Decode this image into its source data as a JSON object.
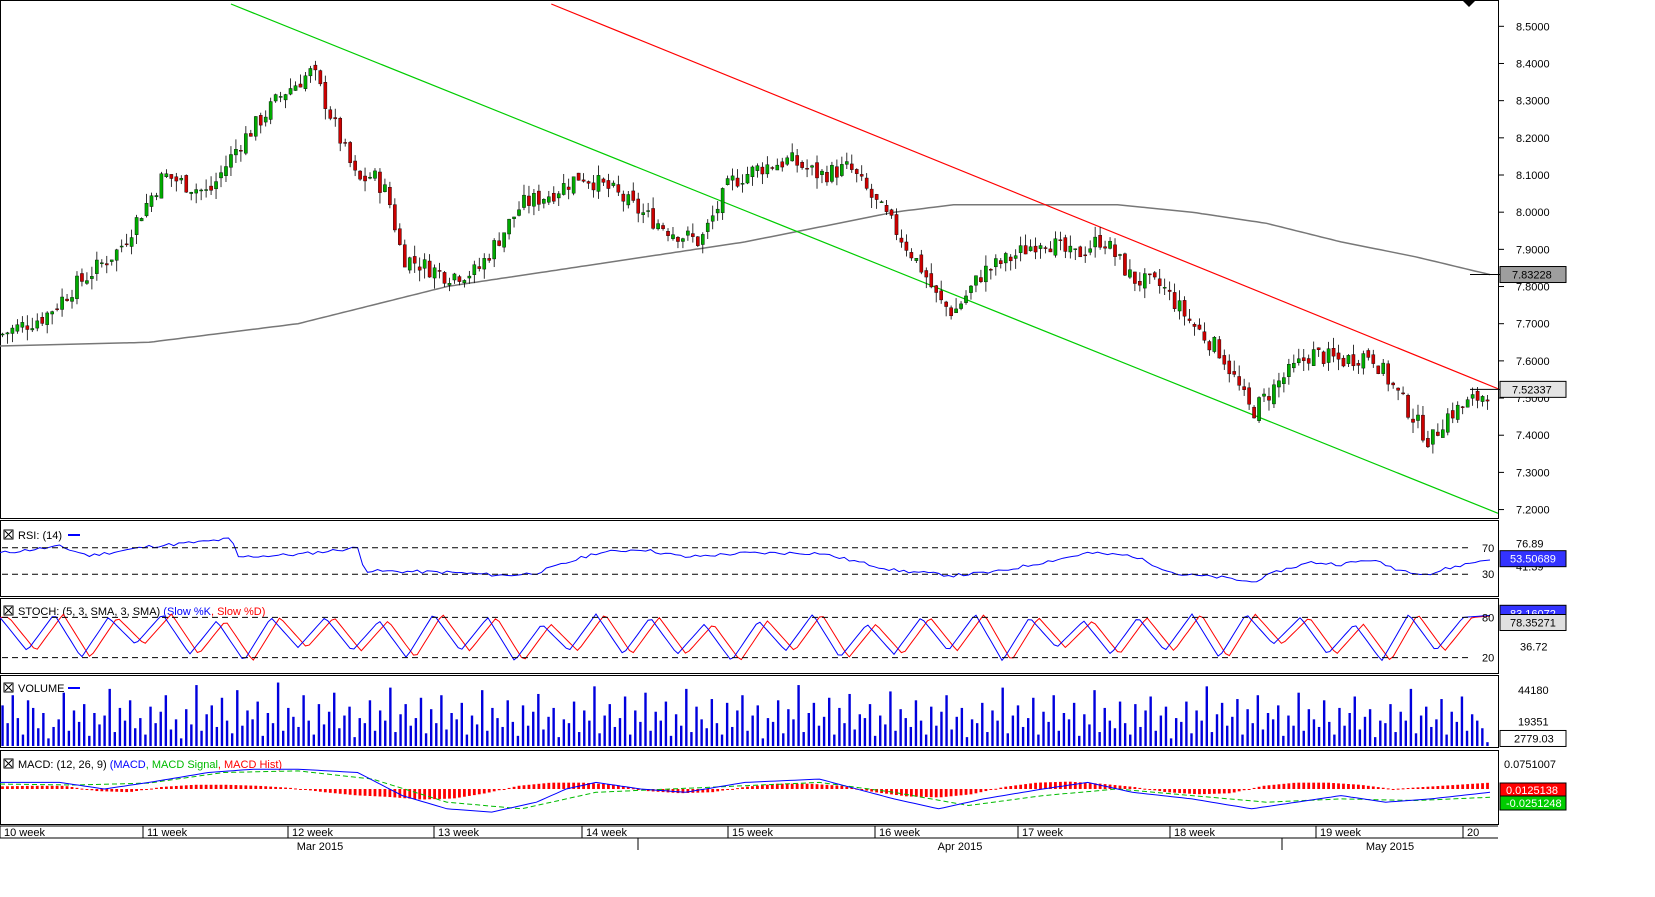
{
  "chart_data": [
    {
      "type": "candlestick",
      "panel": "price",
      "ylim": [
        7.18,
        8.56
      ],
      "y_ticks": [
        "8.5000",
        "8.4000",
        "8.3000",
        "8.2000",
        "8.1000",
        "8.0000",
        "7.9000",
        "7.8000",
        "7.7000",
        "7.6000",
        "7.5000",
        "7.4000",
        "7.3000",
        "7.2000"
      ],
      "price_badges": [
        {
          "label": "7.83228",
          "value": 7.83228,
          "fill": "#9e9e9e"
        },
        {
          "label": "7.52337",
          "value": 7.52337,
          "fill": "#e4e4e4"
        }
      ],
      "trend_lines": [
        {
          "name": "",
          "color": "#00cc00",
          "x": [
            0.155,
            1.0
          ],
          "y": [
            8.56,
            7.19
          ]
        },
        {
          "name": "",
          "color": "#ff0000",
          "x": [
            0.37,
            1.0
          ],
          "y": [
            8.56,
            7.525
          ]
        }
      ],
      "moving_average_anchors": {
        "color": "#777777",
        "x": [
          0,
          0.1,
          0.2,
          0.3,
          0.4,
          0.5,
          0.55,
          0.6,
          0.64,
          0.7,
          0.75,
          0.8,
          0.85,
          0.9,
          0.95,
          1.0
        ],
        "y": [
          7.64,
          7.65,
          7.7,
          7.8,
          7.86,
          7.92,
          7.96,
          8.0,
          8.02,
          8.02,
          8.02,
          8.0,
          7.97,
          7.92,
          7.88,
          7.832
        ]
      },
      "close_anchors": {
        "x": [
          0,
          0.03,
          0.05,
          0.08,
          0.11,
          0.14,
          0.16,
          0.19,
          0.21,
          0.24,
          0.25,
          0.26,
          0.27,
          0.3,
          0.32,
          0.35,
          0.37,
          0.39,
          0.41,
          0.43,
          0.45,
          0.47,
          0.49,
          0.51,
          0.53,
          0.55,
          0.57,
          0.6,
          0.62,
          0.63,
          0.64,
          0.66,
          0.68,
          0.7,
          0.72,
          0.74,
          0.76,
          0.78,
          0.8,
          0.82,
          0.84,
          0.86,
          0.88,
          0.9,
          0.92,
          0.94,
          0.96,
          0.97,
          1.0
        ],
        "y": [
          7.67,
          7.72,
          7.8,
          7.9,
          8.1,
          8.05,
          8.18,
          8.32,
          8.38,
          8.08,
          8.1,
          8.05,
          7.88,
          7.83,
          7.84,
          8.02,
          8.05,
          8.1,
          8.06,
          8.0,
          7.95,
          7.92,
          8.08,
          8.12,
          8.14,
          8.1,
          8.12,
          7.96,
          7.84,
          7.76,
          7.73,
          7.84,
          7.88,
          7.93,
          7.88,
          7.93,
          7.82,
          7.8,
          7.7,
          7.62,
          7.46,
          7.55,
          7.62,
          7.6,
          7.62,
          7.5,
          7.38,
          7.45,
          7.52
        ]
      }
    },
    {
      "type": "line",
      "panel": "rsi",
      "legend": "RSI: (14)",
      "ylim": [
        0,
        100
      ],
      "levels": [
        {
          "label": "70",
          "value": 70
        },
        {
          "label": "30",
          "value": 30
        }
      ],
      "axis_labels": [
        {
          "label": "76.89",
          "value": 76.89
        },
        {
          "label": "41.39",
          "value": 41.39
        }
      ],
      "badge": {
        "label": "53.50689",
        "value": 53.50689
      },
      "anchors": {
        "x": [
          0,
          0.04,
          0.06,
          0.1,
          0.14,
          0.155,
          0.16,
          0.2,
          0.24,
          0.245,
          0.3,
          0.34,
          0.36,
          0.4,
          0.43,
          0.46,
          0.5,
          0.55,
          0.6,
          0.64,
          0.67,
          0.7,
          0.73,
          0.76,
          0.79,
          0.82,
          0.84,
          0.86,
          0.88,
          0.9,
          0.92,
          0.94,
          0.96,
          0.97,
          1.0
        ],
        "y": [
          62,
          72,
          58,
          72,
          80,
          84,
          56,
          60,
          70,
          35,
          33,
          28,
          32,
          62,
          68,
          56,
          62,
          62,
          36,
          28,
          34,
          48,
          62,
          58,
          30,
          25,
          18,
          36,
          48,
          45,
          52,
          36,
          30,
          38,
          53.5
        ]
      }
    },
    {
      "type": "line",
      "panel": "stochastic",
      "legend": "STOCH: (5, 3, SMA, 3, SMA)",
      "series_names": [
        "Slow %K",
        "Slow %D"
      ],
      "series_colors": [
        "#0000ff",
        "#ff0000"
      ],
      "ylim": [
        0,
        100
      ],
      "levels": [
        {
          "label": "80",
          "value": 80
        },
        {
          "label": "20",
          "value": 20
        }
      ],
      "axis_labels": [
        {
          "label": "36.72",
          "value": 36.72
        }
      ],
      "badges": [
        {
          "label": "83.16072",
          "value": 83.16072,
          "fill": "#3333ff"
        },
        {
          "label": "78.35271",
          "value": 78.35271,
          "fill": "#e0e0e0"
        }
      ],
      "swing_levels": [
        80,
        30,
        85,
        20,
        80,
        40,
        85,
        25,
        75,
        15,
        80,
        35,
        80,
        30,
        75,
        20,
        85,
        30,
        80,
        15,
        70,
        30,
        85,
        25,
        80,
        25,
        70,
        15,
        75,
        30,
        85,
        20,
        70,
        25,
        80,
        30,
        85,
        15,
        80,
        35,
        75,
        25,
        80,
        30,
        85,
        20,
        85,
        40,
        80,
        25,
        70,
        15,
        85,
        30,
        80,
        83
      ]
    },
    {
      "type": "bar",
      "panel": "volume",
      "legend": "VOLUME",
      "axis_labels": [
        {
          "label": "44180",
          "value": 44180
        },
        {
          "label": "19351",
          "value": 19351
        }
      ],
      "badge": {
        "label": "2779.03",
        "value": 2779.03
      },
      "ylim": [
        0,
        52000
      ],
      "bar_heights": [
        32000,
        18000,
        40000,
        22000,
        9000,
        36000,
        30000,
        14000,
        26000,
        6000,
        15000,
        21000,
        42000,
        12000,
        28000,
        19000,
        33000,
        8000,
        26000,
        17000,
        24000,
        45000,
        11000,
        30000,
        20000,
        36000,
        14000,
        22000,
        9000,
        31000,
        18000,
        27000,
        40000,
        13000,
        21000,
        6000,
        29000,
        17000,
        48000,
        12000,
        25000,
        32000,
        15000,
        38000,
        20000,
        10000,
        44000,
        16000,
        28000,
        21000,
        35000,
        8000,
        26000,
        18000,
        50000,
        12000,
        30000,
        23000,
        15000,
        40000,
        20000,
        9000,
        33000,
        17000,
        27000,
        42000,
        14000,
        24000,
        31000,
        7000,
        22000,
        18000,
        36000,
        12000,
        28000,
        20000,
        46000,
        11000,
        25000,
        33000,
        16000,
        22000,
        38000,
        10000,
        29000,
        18000,
        40000,
        13000,
        26000,
        21000,
        34000,
        9000,
        24000,
        17000,
        44000,
        12000,
        30000,
        22000,
        15000,
        36000,
        19000,
        8000,
        32000,
        16000,
        27000,
        41000,
        13000,
        23000,
        30000,
        7000,
        21000,
        18000,
        35000,
        11000,
        28000,
        20000,
        47000,
        10000,
        24000,
        33000,
        15000,
        22000,
        39000,
        9000,
        28000,
        19000,
        42000,
        12000,
        27000,
        20000,
        35000,
        8000,
        25000,
        16000,
        45000,
        11000,
        31000,
        21000,
        14000,
        37000,
        18000,
        9000,
        34000,
        15000,
        28000,
        40000,
        12000,
        24000,
        32000,
        6000,
        22000,
        19000,
        36000,
        10000,
        29000,
        21000,
        48000,
        11000,
        26000,
        34000,
        16000,
        23000,
        38000,
        9000,
        30000,
        18000,
        41000,
        13000,
        25000,
        22000,
        33000,
        8000,
        24000,
        17000,
        43000,
        12000,
        29000,
        22000,
        15000,
        36000,
        20000,
        9000,
        31000,
        16000,
        27000,
        40000,
        13000,
        23000,
        30000,
        7000,
        21000,
        18000,
        34000,
        11000,
        28000,
        20000,
        46000,
        10000,
        24000,
        32000,
        15000,
        22000,
        38000,
        9000,
        27000,
        19000,
        40000,
        12000,
        26000,
        21000,
        34000,
        8000,
        25000,
        17000,
        44000,
        11000,
        30000,
        20000,
        14000,
        35000,
        18000,
        9000,
        33000,
        15000,
        28000,
        39000,
        12000,
        24000,
        31000,
        6000,
        22000,
        19000,
        35000,
        10000,
        28000,
        20000,
        47000,
        11000,
        25000,
        34000,
        16000,
        23000,
        37000,
        9000,
        29000,
        18000,
        40000,
        13000,
        26000,
        21000,
        32000,
        8000,
        24000,
        16000,
        42000,
        12000,
        29000,
        21000,
        15000,
        36000,
        19000,
        9000,
        30000,
        16000,
        26000,
        39000,
        13000,
        23000,
        29000,
        7000,
        20000,
        18000,
        33000,
        11000,
        27000,
        20000,
        45000,
        10000,
        24000,
        31000,
        15000,
        21000,
        37000,
        9000,
        27000,
        19000,
        39000,
        12000,
        25000,
        20000,
        14000,
        3000
      ]
    },
    {
      "type": "line",
      "panel": "macd",
      "legend": "MACD: (12, 26, 9)",
      "series_names": [
        "MACD",
        "MACD Signal",
        "MACD Hist"
      ],
      "series_colors": [
        "#0000ff",
        "#00bb00",
        "#ff0000"
      ],
      "ylim": [
        -0.1,
        0.1
      ],
      "axis_labels": [
        {
          "label": "0.0751007",
          "value": 0.0751007
        }
      ],
      "badges": [
        {
          "label": "0.0125138",
          "value": 0.0125138,
          "fill": "#ff0000"
        },
        {
          "label": "-0.0251248",
          "value": -0.0251248,
          "fill": "#00cc00"
        }
      ],
      "macd_anchors": {
        "x": [
          0,
          0.04,
          0.07,
          0.1,
          0.14,
          0.17,
          0.2,
          0.24,
          0.27,
          0.3,
          0.33,
          0.36,
          0.38,
          0.4,
          0.43,
          0.46,
          0.5,
          0.55,
          0.6,
          0.63,
          0.66,
          0.7,
          0.73,
          0.76,
          0.8,
          0.84,
          0.87,
          0.9,
          0.93,
          0.96,
          1.0
        ],
        "y": [
          0.02,
          0.02,
          0.0,
          0.02,
          0.05,
          0.06,
          0.06,
          0.05,
          -0.02,
          -0.06,
          -0.07,
          -0.04,
          0.0,
          0.02,
          0.0,
          -0.01,
          0.02,
          0.03,
          -0.03,
          -0.06,
          -0.03,
          0.0,
          0.02,
          -0.01,
          -0.03,
          -0.06,
          -0.04,
          -0.02,
          -0.04,
          -0.03,
          -0.01
        ]
      },
      "signal_anchors": {
        "x": [
          0,
          0.05,
          0.1,
          0.15,
          0.2,
          0.25,
          0.3,
          0.35,
          0.4,
          0.45,
          0.5,
          0.55,
          0.6,
          0.65,
          0.7,
          0.75,
          0.8,
          0.85,
          0.9,
          0.95,
          1.0
        ],
        "y": [
          0.015,
          0.012,
          0.018,
          0.05,
          0.055,
          0.03,
          -0.04,
          -0.06,
          -0.01,
          0.0,
          0.01,
          0.02,
          -0.01,
          -0.05,
          -0.02,
          0.0,
          -0.02,
          -0.04,
          -0.03,
          -0.035,
          -0.025
        ]
      },
      "hist_levels": [
        0.005,
        0.006,
        0.006,
        -0.004,
        -0.006,
        0.004,
        0.008,
        0.008,
        0.006,
        0.002,
        -0.006,
        -0.012,
        -0.015,
        -0.02,
        -0.018,
        -0.008,
        0.006,
        0.012,
        0.012,
        0.008,
        -0.004,
        -0.008,
        -0.006,
        0.004,
        0.01,
        0.01,
        0.006,
        -0.006,
        -0.014,
        -0.016,
        -0.01,
        0.004,
        0.012,
        0.014,
        0.01,
        0.004,
        -0.006,
        -0.01,
        -0.008,
        0.006,
        0.012,
        0.012,
        0.008,
        0.0,
        0.004,
        0.008,
        0.012
      ]
    }
  ],
  "x_axis": {
    "week_labels": [
      "10 week",
      "11 week",
      "12 week",
      "13 week",
      "14 week",
      "15 week",
      "16 week",
      "17 week",
      "18 week",
      "19 week",
      "20"
    ],
    "month_labels": [
      "Mar 2015",
      "Apr 2015",
      "May 2015"
    ]
  },
  "colors": {
    "bull_candle": "#00aa00",
    "bear_candle": "#cc0000",
    "rsi_line": "#0000ff",
    "volume_bars": "#0000dd"
  }
}
